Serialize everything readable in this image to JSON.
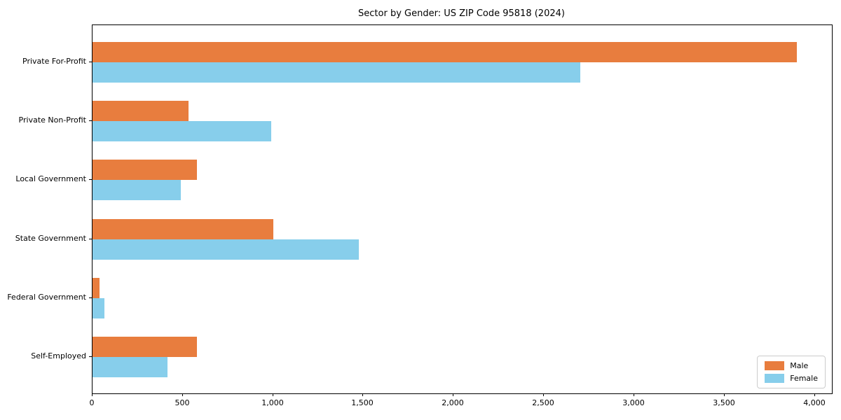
{
  "title": "Sector by Gender: US ZIP Code 95818 (2024)",
  "chart_data": {
    "type": "bar",
    "orientation": "horizontal",
    "title": "Sector by Gender: US ZIP Code 95818 (2024)",
    "categories": [
      "Private For-Profit",
      "Private Non-Profit",
      "Local Government",
      "State Government",
      "Federal Government",
      "Self-Employed"
    ],
    "series": [
      {
        "name": "Male",
        "color": "#e87d3e",
        "values": [
          3900,
          530,
          580,
          1000,
          40,
          580
        ]
      },
      {
        "name": "Female",
        "color": "#87ceeb",
        "values": [
          2700,
          990,
          490,
          1475,
          65,
          415
        ]
      }
    ],
    "xlabel": "",
    "ylabel": "",
    "xlim": [
      0,
      4095
    ],
    "xticks": [
      0,
      500,
      1000,
      1500,
      2000,
      2500,
      3000,
      3500,
      4000
    ],
    "xtick_labels": [
      "0",
      "500",
      "1,000",
      "1,500",
      "2,000",
      "2,500",
      "3,000",
      "3,500",
      "4,000"
    ],
    "grid": false,
    "legend_position": "lower right"
  }
}
